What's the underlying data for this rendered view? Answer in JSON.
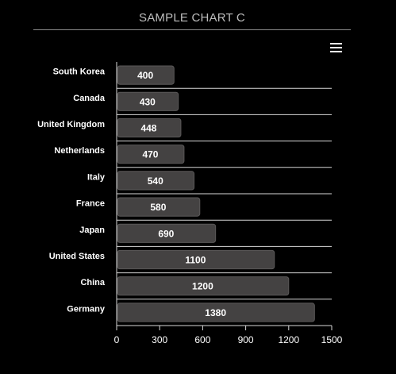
{
  "chart_data": {
    "type": "bar",
    "orientation": "horizontal",
    "title": "SAMPLE CHART C",
    "categories": [
      "South Korea",
      "Canada",
      "United Kingdom",
      "Netherlands",
      "Italy",
      "France",
      "Japan",
      "United States",
      "China",
      "Germany"
    ],
    "values": [
      400,
      430,
      448,
      470,
      540,
      580,
      690,
      1100,
      1200,
      1380
    ],
    "xlim": [
      0,
      1500
    ],
    "xticks": [
      0,
      300,
      600,
      900,
      1200,
      1500
    ],
    "xlabel": "",
    "ylabel": "",
    "grid": "horizontal-row-separators",
    "legend": "none",
    "data_labels": true,
    "colors": {
      "background": "#000000",
      "bar": "#444242",
      "bar_stroke": "#5a5858",
      "text": "#ffffff",
      "title": "#bdbdbd",
      "grid": "#d8d8d8"
    }
  },
  "toolbar": {
    "menu_icon": "hamburger-menu-icon"
  }
}
